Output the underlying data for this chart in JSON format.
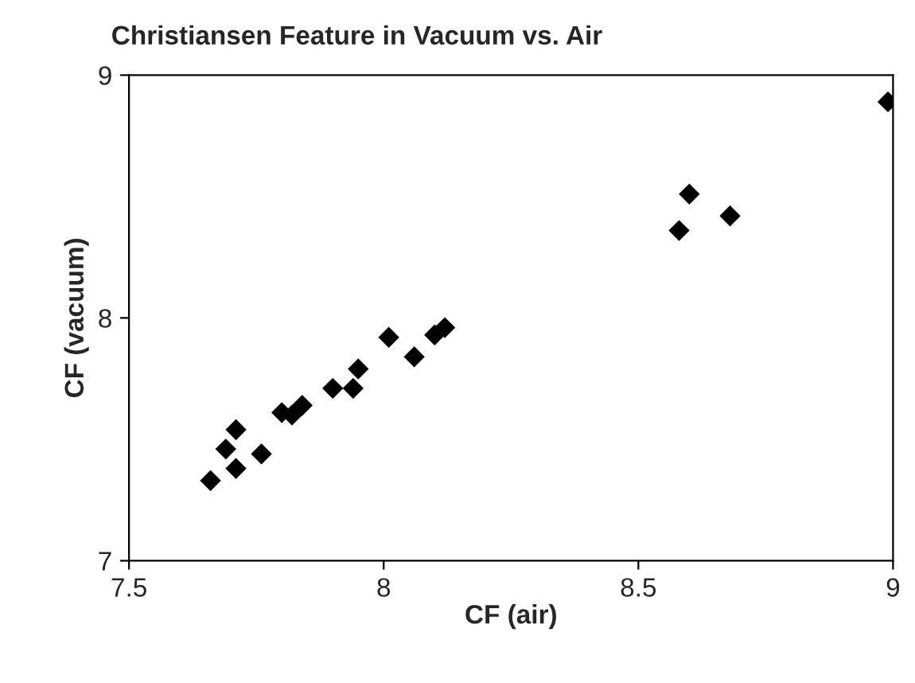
{
  "chart_data": {
    "type": "scatter",
    "title": "Christiansen Feature in Vacuum vs. Air",
    "xlabel": "CF (air)",
    "ylabel": "CF (vacuum)",
    "x": [
      7.66,
      7.69,
      7.71,
      7.71,
      7.76,
      7.8,
      7.82,
      7.84,
      7.9,
      7.94,
      7.95,
      8.01,
      8.06,
      8.1,
      8.12,
      8.58,
      8.6,
      8.68,
      8.99
    ],
    "series": [
      {
        "color": "#000000",
        "values": [
          7.33,
          7.46,
          7.54,
          7.38,
          7.44,
          7.61,
          7.6,
          7.64,
          7.71,
          7.71,
          7.79,
          7.92,
          7.84,
          7.93,
          7.96,
          8.36,
          8.51,
          8.42,
          8.89
        ]
      }
    ],
    "xlim": [
      7.5,
      9
    ],
    "ylim": [
      7,
      9
    ],
    "xticks": [
      7.5,
      8,
      8.5,
      9
    ],
    "yticks": [
      7,
      8,
      9
    ],
    "marker": "diamond",
    "grid": false,
    "legend": false
  }
}
